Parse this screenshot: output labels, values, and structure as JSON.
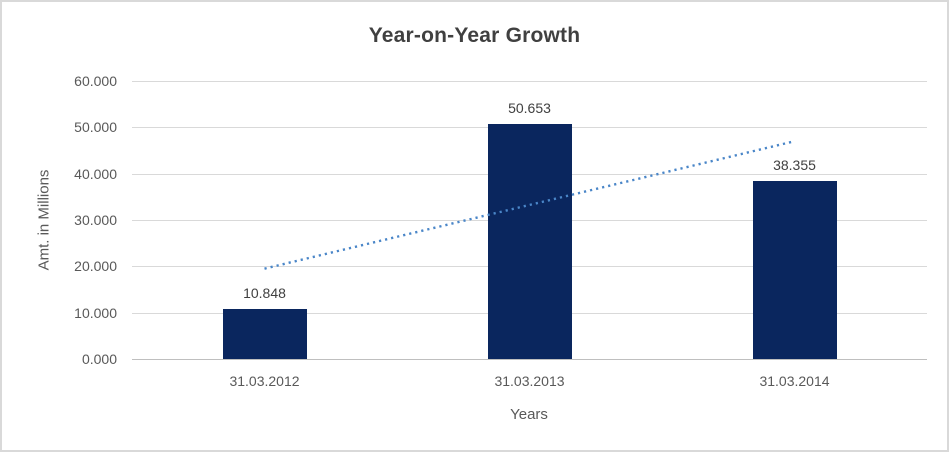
{
  "chart_data": {
    "type": "bar",
    "title": "Year-on-Year Growth",
    "xlabel": "Years",
    "ylabel": "Amt. in Millions",
    "categories": [
      "31.03.2012",
      "31.03.2013",
      "31.03.2014"
    ],
    "values": [
      10.848,
      50.653,
      38.355
    ],
    "data_labels": [
      "10.848",
      "50.653",
      "38.355"
    ],
    "ylim": [
      0,
      60
    ],
    "yticks": [
      {
        "value": 0,
        "label": "0.000"
      },
      {
        "value": 10,
        "label": "10.000"
      },
      {
        "value": 20,
        "label": "20.000"
      },
      {
        "value": 30,
        "label": "30.000"
      },
      {
        "value": 40,
        "label": "40.000"
      },
      {
        "value": 50,
        "label": "50.000"
      },
      {
        "value": 60,
        "label": "60.000"
      }
    ],
    "grid": true,
    "legend": "none",
    "trendline": {
      "type": "linear",
      "style": "dotted",
      "color": "#4a86c8",
      "start_value": 19.5,
      "end_value": 47.0
    },
    "colors": {
      "bar": "#0a265e",
      "gridline": "#d9d9d9",
      "axis_line": "#bfbfbf",
      "title_text": "#404040",
      "data_label_text": "#404040",
      "tick_text": "#595959",
      "frame_border": "#d9d9d9",
      "background": "#ffffff"
    }
  }
}
